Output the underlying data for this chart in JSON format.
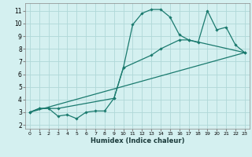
{
  "xlabel": "Humidex (Indice chaleur)",
  "bg_color": "#d4f0f0",
  "grid_color": "#b0d8d8",
  "line_color": "#1a7a6e",
  "marker": "D",
  "markersize": 1.8,
  "linewidth": 0.9,
  "xlim": [
    -0.5,
    23.5
  ],
  "ylim": [
    1.7,
    11.6
  ],
  "xticks": [
    0,
    1,
    2,
    3,
    4,
    5,
    6,
    7,
    8,
    9,
    10,
    11,
    12,
    13,
    14,
    15,
    16,
    17,
    18,
    19,
    20,
    21,
    22,
    23
  ],
  "yticks": [
    2,
    3,
    4,
    5,
    6,
    7,
    8,
    9,
    10,
    11
  ],
  "series1": [
    [
      0,
      3.0
    ],
    [
      1,
      3.3
    ],
    [
      2,
      3.3
    ],
    [
      3,
      2.7
    ],
    [
      4,
      2.8
    ],
    [
      5,
      2.5
    ],
    [
      6,
      3.0
    ],
    [
      7,
      3.1
    ],
    [
      8,
      3.1
    ],
    [
      9,
      4.1
    ],
    [
      10,
      6.5
    ],
    [
      11,
      9.9
    ],
    [
      12,
      10.8
    ],
    [
      13,
      11.1
    ],
    [
      14,
      11.1
    ],
    [
      15,
      10.5
    ],
    [
      16,
      9.1
    ],
    [
      17,
      8.7
    ],
    [
      18,
      8.5
    ],
    [
      19,
      11.0
    ],
    [
      20,
      9.5
    ],
    [
      21,
      9.7
    ],
    [
      22,
      8.3
    ],
    [
      23,
      7.7
    ]
  ],
  "series2": [
    [
      0,
      3.0
    ],
    [
      1,
      3.3
    ],
    [
      2,
      3.3
    ],
    [
      3,
      3.3
    ],
    [
      9,
      4.1
    ],
    [
      10,
      6.5
    ],
    [
      13,
      7.5
    ],
    [
      14,
      8.0
    ],
    [
      16,
      8.7
    ],
    [
      17,
      8.7
    ],
    [
      23,
      7.7
    ]
  ],
  "series3": [
    [
      0,
      3.0
    ],
    [
      23,
      7.7
    ]
  ]
}
